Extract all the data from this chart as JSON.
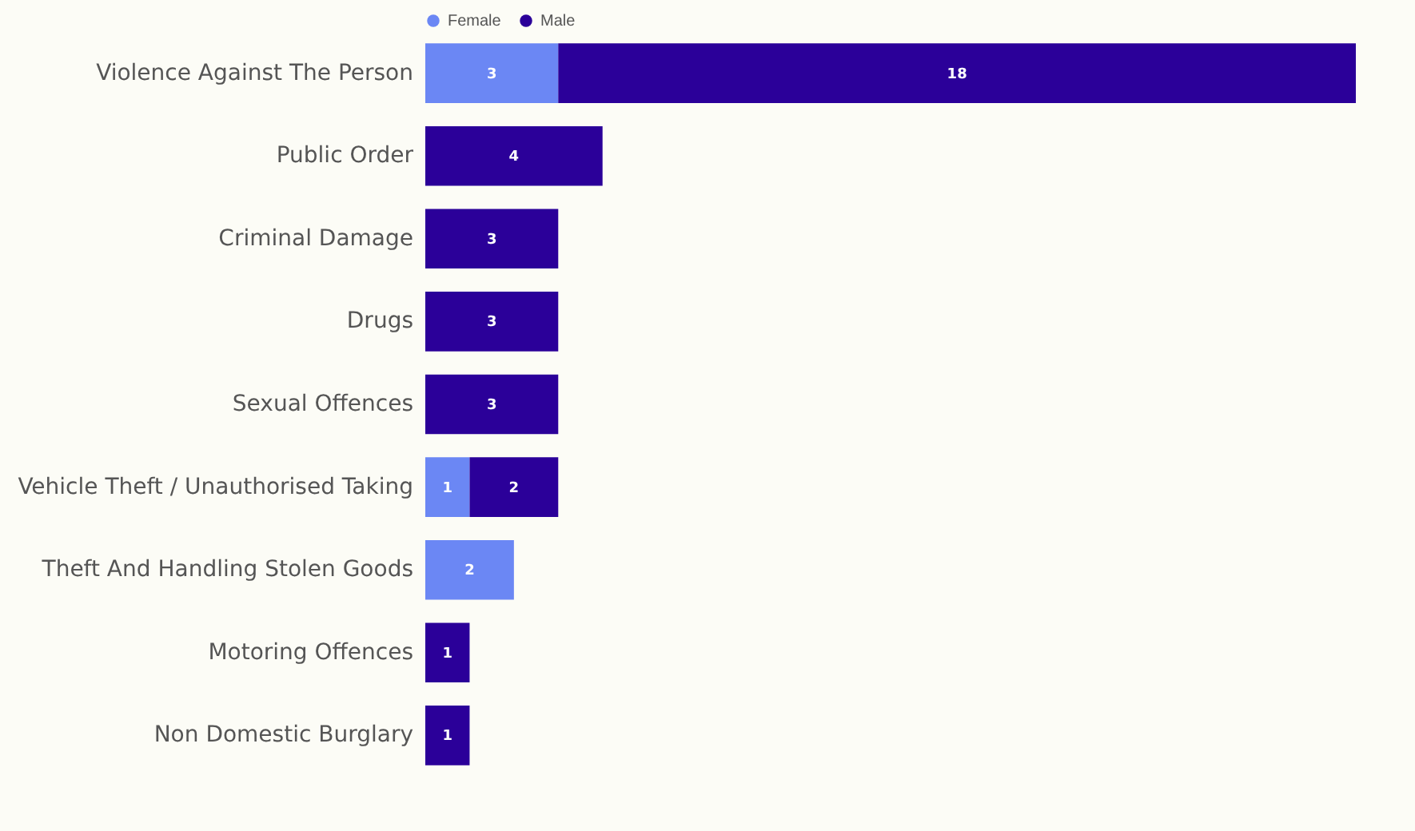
{
  "chart_data": {
    "type": "bar",
    "orientation": "horizontal",
    "stacked": true,
    "data_labels": true,
    "legend": "top left",
    "categories": [
      "Violence Against The Person",
      "Public Order",
      "Criminal Damage",
      "Drugs",
      "Sexual Offences",
      "Vehicle Theft / Unauthorised Taking",
      "Theft And Handling Stolen Goods",
      "Motoring Offences",
      "Non Domestic Burglary"
    ],
    "series": [
      {
        "name": "Female",
        "color": "#6b87f4",
        "values": [
          3,
          null,
          null,
          null,
          null,
          1,
          2,
          null,
          null
        ]
      },
      {
        "name": "Male",
        "color": "#2b0099",
        "values": [
          18,
          4,
          3,
          3,
          3,
          2,
          null,
          1,
          1
        ]
      }
    ]
  }
}
